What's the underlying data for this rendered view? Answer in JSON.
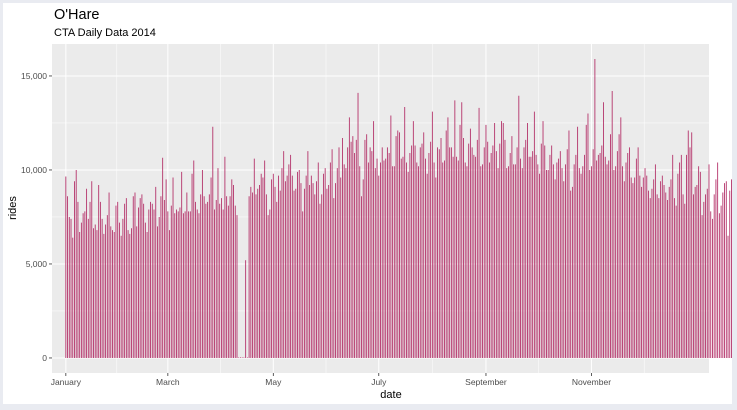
{
  "chart_data": {
    "type": "bar",
    "title": "O'Hare",
    "subtitle": "CTA Daily Data 2014",
    "xlabel": "date",
    "ylabel": "rides",
    "x_range": [
      "2013-12-24",
      "2015-01-08"
    ],
    "ylim": [
      -800,
      16700
    ],
    "y_ticks": [
      0,
      5000,
      10000,
      15000
    ],
    "y_tick_labels": [
      "0",
      "5,000",
      "10,000",
      "15,000"
    ],
    "x_ticks": [
      "2014-01-01",
      "2014-03-01",
      "2014-05-01",
      "2014-07-01",
      "2014-09-01",
      "2014-11-01"
    ],
    "x_tick_labels": [
      "January",
      "March",
      "May",
      "July",
      "September",
      "November"
    ],
    "grid": true,
    "bar_color": "#b5346b",
    "panel_color": "#ebebeb",
    "grid_color": "#ffffff",
    "start_date": "2014-01-01",
    "values": [
      9650,
      8600,
      7500,
      7400,
      6400,
      9400,
      10000,
      8300,
      6700,
      7200,
      7700,
      7800,
      9000,
      7400,
      8300,
      9400,
      6900,
      7100,
      6800,
      9200,
      8300,
      7400,
      6600,
      7100,
      7600,
      8800,
      7000,
      6800,
      6700,
      8100,
      8300,
      7200,
      6500,
      7400,
      8200,
      8500,
      6800,
      6600,
      6900,
      8600,
      8800,
      7000,
      8000,
      8500,
      8700,
      8200,
      7200,
      6700,
      7900,
      8300,
      8200,
      7900,
      9100,
      7000,
      7500,
      8600,
      10650,
      8400,
      9500,
      7800,
      6800,
      8100,
      9600,
      7700,
      7900,
      7800,
      8000,
      9900,
      7700,
      7800,
      8800,
      7800,
      7800,
      9800,
      10500,
      8300,
      7900,
      7700,
      8700,
      10000,
      8600,
      8200,
      8300,
      8700,
      9600,
      12300,
      7900,
      8400,
      10100,
      8200,
      8500,
      7900,
      10700,
      8600,
      8100,
      8600,
      9500,
      9200,
      8100,
      7600,
      0,
      0,
      0,
      0,
      5200,
      0,
      8600,
      9100,
      8800,
      10600,
      8700,
      9000,
      9200,
      9800,
      9600,
      10500,
      8700,
      7600,
      7900,
      9500,
      9800,
      9100,
      8300,
      9700,
      8900,
      10100,
      11000,
      9400,
      9700,
      10300,
      10800,
      9700,
      8900,
      9000,
      9900,
      10000,
      9300,
      7800,
      9000,
      9700,
      11000,
      9200,
      9700,
      9300,
      8700,
      9400,
      10400,
      8200,
      8700,
      9800,
      10100,
      9000,
      9200,
      10400,
      11100,
      8500,
      9300,
      10100,
      11200,
      9600,
      11700,
      10300,
      10100,
      11200,
      12800,
      11500,
      11800,
      10900,
      11600,
      14100,
      10200,
      8600,
      9500,
      11600,
      11900,
      10400,
      11200,
      11000,
      12600,
      10100,
      10600,
      9700,
      10400,
      11200,
      10500,
      10600,
      11200,
      10900,
      12900,
      10200,
      10200,
      11800,
      12100,
      12000,
      10600,
      10700,
      13350,
      10400,
      9900,
      10900,
      11300,
      12600,
      11300,
      10400,
      10200,
      11200,
      11400,
      12000,
      10600,
      9800,
      10900,
      11500,
      13100,
      10400,
      9600,
      11200,
      11100,
      11700,
      10400,
      10500,
      12100,
      12800,
      11200,
      11200,
      10700,
      13700,
      10700,
      10500,
      12400,
      13600,
      11700,
      10400,
      10200,
      11400,
      12200,
      11200,
      10800,
      10700,
      11600,
      13300,
      10200,
      10300,
      11200,
      12400,
      11500,
      10400,
      10900,
      11300,
      12500,
      11000,
      10100,
      11400,
      12600,
      12500,
      11600,
      10100,
      10200,
      10900,
      11800,
      10300,
      10300,
      11200,
      13950,
      10600,
      10100,
      11200,
      11600,
      12500,
      10700,
      10700,
      11000,
      13100,
      10800,
      10300,
      9800,
      11400,
      12600,
      11300,
      10000,
      10000,
      10800,
      11300,
      10300,
      9500,
      10400,
      10600,
      11000,
      10100,
      9400,
      10300,
      11100,
      12100,
      8900,
      9100,
      10300,
      10800,
      12300,
      10100,
      9800,
      10200,
      10800,
      12400,
      13000,
      10000,
      10200,
      11100,
      15900,
      10500,
      10800,
      10900,
      11300,
      13600,
      10700,
      10300,
      10500,
      11900,
      14200,
      10000,
      10200,
      11000,
      11900,
      12800,
      10200,
      9400,
      10400,
      10900,
      11200,
      9600,
      9300,
      9600,
      10600,
      11200,
      9700,
      9100,
      9600,
      10100,
      9700,
      8900,
      8500,
      9000,
      9500,
      10300,
      8700,
      8500,
      9400,
      9700,
      9200,
      8800,
      8400,
      9100,
      9500,
      10800,
      8500,
      8100,
      9800,
      10400,
      10800,
      8700,
      8200,
      10800,
      12100,
      11200,
      12000,
      8700,
      9100,
      9200,
      10200,
      9900,
      7600,
      8300,
      8700,
      9000,
      10300,
      7800,
      7400,
      8700,
      9500,
      10400,
      7700,
      8100,
      8800,
      9300,
      9400,
      6500,
      8900,
      9500,
      11600,
      10700,
      11100,
      10700
    ]
  }
}
